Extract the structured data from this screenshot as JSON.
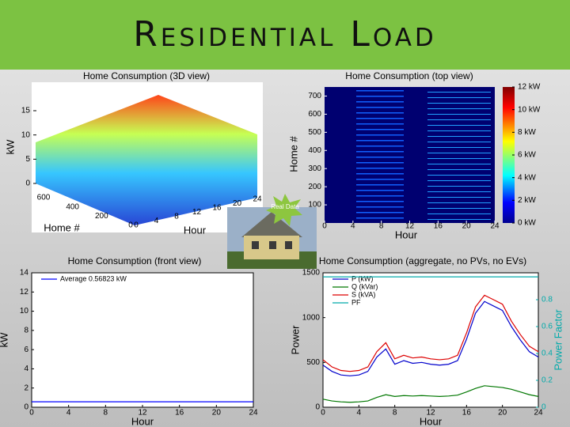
{
  "header": {
    "title": "Residential Load"
  },
  "badge": "Real Data",
  "chart_data": [
    {
      "type": "surface3d",
      "title": "Home Consumption (3D view)",
      "zlabel": "kW",
      "xlabel": "Home #",
      "ylabel": "Hour",
      "zlim": [
        0,
        15
      ],
      "zticks": [
        0,
        5,
        10,
        15
      ],
      "hometicks": [
        0,
        200,
        400,
        600
      ],
      "hourticks": [
        0,
        4,
        8,
        12,
        16,
        20,
        24
      ]
    },
    {
      "type": "heatmap",
      "title": "Home Consumption (top view)",
      "xlabel": "Hour",
      "ylabel": "Home #",
      "xlim": [
        0,
        24
      ],
      "xticks": [
        0,
        4,
        8,
        12,
        16,
        20,
        24
      ],
      "ylim": [
        0,
        750
      ],
      "yticks": [
        100,
        200,
        300,
        400,
        500,
        600,
        700
      ],
      "clim": [
        0,
        12
      ],
      "cticks": [
        {
          "value": 0,
          "label": "0 kW"
        },
        {
          "value": 2,
          "label": "2 kW"
        },
        {
          "value": 4,
          "label": "4 kW"
        },
        {
          "value": 6,
          "label": "6 kW"
        },
        {
          "value": 8,
          "label": "8 kW"
        },
        {
          "value": 10,
          "label": "10 kW"
        },
        {
          "value": 12,
          "label": "12 kW"
        }
      ]
    },
    {
      "type": "line",
      "title": "Home Consumption (front view)",
      "xlabel": "Hour",
      "ylabel": "kW",
      "x": [
        0,
        24
      ],
      "xlim": [
        0,
        24
      ],
      "xticks": [
        0,
        4,
        8,
        12,
        16,
        20,
        24
      ],
      "ylim": [
        0,
        14
      ],
      "yticks": [
        0,
        2,
        4,
        6,
        8,
        10,
        12,
        14
      ],
      "series": [
        {
          "name": "Average 0.56823 kW",
          "color": "#0000ff",
          "values": [
            0.56823,
            0.56823
          ]
        }
      ]
    },
    {
      "type": "line",
      "title": "Home Consumption (aggregate, no PVs, no EVs)",
      "xlabel": "Hour",
      "ylabel": "Power",
      "y2label": "Power Factor",
      "x": [
        0,
        1,
        2,
        3,
        4,
        5,
        6,
        7,
        8,
        9,
        10,
        11,
        12,
        13,
        14,
        15,
        16,
        17,
        18,
        19,
        20,
        21,
        22,
        23,
        24
      ],
      "xlim": [
        0,
        24
      ],
      "xticks": [
        0,
        4,
        8,
        12,
        16,
        20,
        24
      ],
      "ylim": [
        0,
        1500
      ],
      "yticks": [
        0,
        500,
        1000,
        1500
      ],
      "y2lim": [
        0,
        1
      ],
      "y2ticks": [
        0,
        0.2,
        0.4,
        0.6,
        0.8
      ],
      "series": [
        {
          "name": "P (kW)",
          "color": "#0000cc",
          "values": [
            470,
            400,
            360,
            350,
            360,
            400,
            560,
            650,
            480,
            520,
            490,
            500,
            480,
            470,
            480,
            520,
            760,
            1050,
            1180,
            1130,
            1080,
            900,
            750,
            620,
            560
          ]
        },
        {
          "name": "Q (kVar)",
          "color": "#007700",
          "values": [
            90,
            70,
            60,
            55,
            60,
            70,
            110,
            140,
            120,
            130,
            125,
            130,
            125,
            120,
            125,
            135,
            170,
            210,
            240,
            230,
            220,
            200,
            170,
            140,
            120
          ]
        },
        {
          "name": "S (kVA)",
          "color": "#dd0000",
          "values": [
            530,
            450,
            410,
            400,
            410,
            450,
            620,
            720,
            540,
            580,
            550,
            560,
            540,
            530,
            540,
            580,
            830,
            1120,
            1250,
            1200,
            1150,
            960,
            810,
            680,
            620
          ]
        },
        {
          "name": "PF",
          "color": "#00aaaa",
          "axis": "y2",
          "values": [
            0.97,
            0.97,
            0.97,
            0.97,
            0.97,
            0.97,
            0.97,
            0.97,
            0.97,
            0.97,
            0.97,
            0.97,
            0.97,
            0.97,
            0.97,
            0.97,
            0.97,
            0.97,
            0.97,
            0.97,
            0.97,
            0.97,
            0.97,
            0.97,
            0.97
          ]
        }
      ]
    }
  ]
}
